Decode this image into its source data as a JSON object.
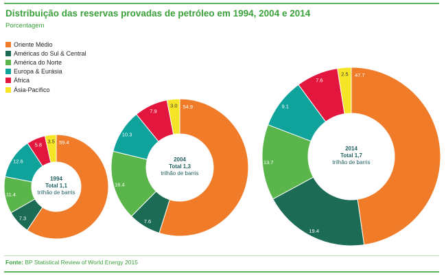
{
  "header": {
    "title": "Distribuição das reservas provadas de petróleo em 1994, 2004 e 2014",
    "subtitle": "Porcentagem"
  },
  "legend": [
    {
      "label": "Oriente Médio",
      "color": "#f07c2a"
    },
    {
      "label": "Américas do Sul & Central",
      "color": "#1c6b55"
    },
    {
      "label": "América do Norte",
      "color": "#5ab54a"
    },
    {
      "label": "Europa & Eurásia",
      "color": "#0fa39c"
    },
    {
      "label": "África",
      "color": "#e3173d"
    },
    {
      "label": "Ásia-Pacífico",
      "color": "#f6e526"
    }
  ],
  "source": {
    "prefix": "Fonte:",
    "text": "BP Statistical Review of World Energy 2015"
  },
  "chart_data": [
    {
      "type": "pie",
      "title": "Distribuição das reservas provadas de petróleo em 1994, 2004 e 2014",
      "subtitle": "Porcentagem",
      "year": "1994",
      "total_label": "Total",
      "total_value": "1,1",
      "total_unit": "trilhão de barris",
      "categories": [
        "Oriente Médio",
        "Américas do Sul & Central",
        "América do Norte",
        "Europa & Eurásia",
        "África",
        "Ásia-Pacífico"
      ],
      "values": [
        59.4,
        7.3,
        11.4,
        12.6,
        5.8,
        3.5
      ],
      "value_labels": [
        "59.4",
        "7.3",
        "11.4",
        "12.6",
        "5.8",
        "3.5"
      ]
    },
    {
      "type": "pie",
      "year": "2004",
      "total_label": "Total",
      "total_value": "1,3",
      "total_unit": "trilhão de barris",
      "categories": [
        "Oriente Médio",
        "Américas do Sul & Central",
        "América do Norte",
        "Europa & Eurásia",
        "África",
        "Ásia-Pacífico"
      ],
      "values": [
        54.9,
        7.6,
        16.4,
        10.3,
        7.9,
        3.0
      ],
      "value_labels": [
        "54.9",
        "7.6",
        "16.4",
        "10.3",
        "7.9",
        "3.0"
      ]
    },
    {
      "type": "pie",
      "year": "2014",
      "total_label": "Total",
      "total_value": "1,7",
      "total_unit": "trilhão de barris",
      "categories": [
        "Oriente Médio",
        "Américas do Sul & Central",
        "América do Norte",
        "Europa & Eurásia",
        "África",
        "Ásia-Pacífico"
      ],
      "values": [
        47.7,
        19.4,
        13.7,
        9.1,
        7.6,
        2.5
      ],
      "value_labels": [
        "47.7",
        "19.4",
        "13.7",
        "9.1",
        "7.6",
        "2.5"
      ]
    }
  ]
}
